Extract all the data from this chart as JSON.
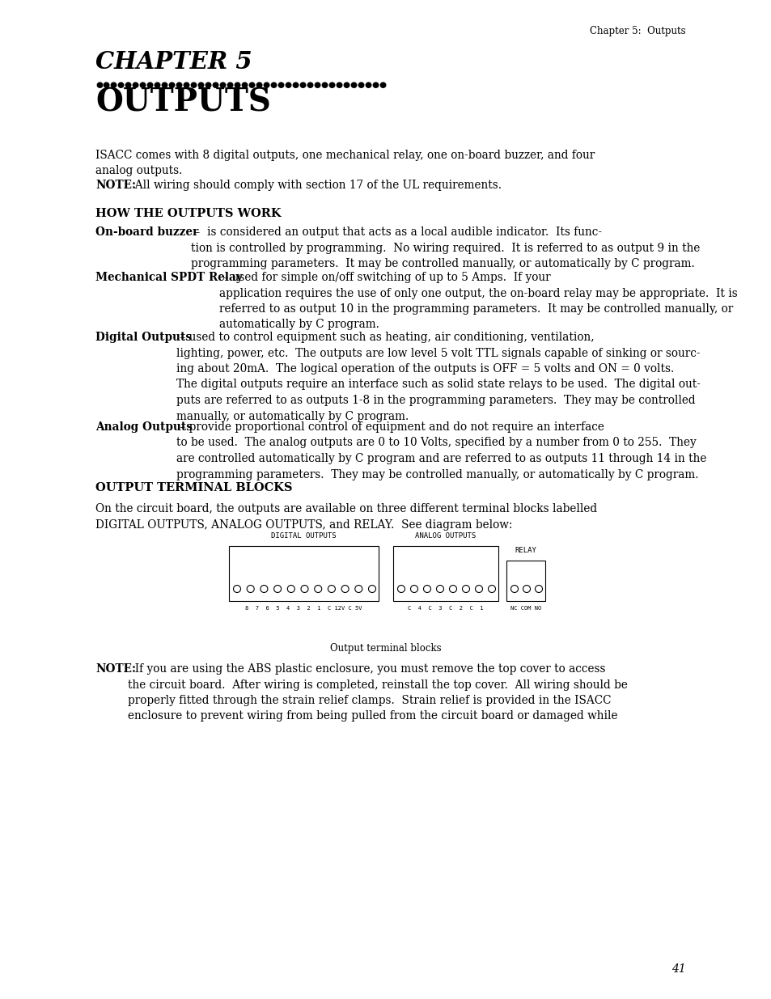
{
  "header_text": "Chapter 5:  Outputs",
  "chapter_label": "CHAPTER 5",
  "title": "OUTPUTS",
  "body_text_1": "ISACC comes with 8 digital outputs, one mechanical relay, one on-board buzzer, and four\nanalog outputs.",
  "note_1_bold": "NOTE:",
  "note_1_rest": "  All wiring should comply with section 17 of the UL requirements.",
  "section1_heading": "HOW THE OUTPUTS WORK",
  "para1_bold": "On-board buzzer",
  "para1_rest": " –  is considered an output that acts as a local audible indicator.  Its func-\ntion is controlled by programming.  No wiring required.  It is referred to as output 9 in the\nprogramming parameters.  It may be controlled manually, or automatically by C program.",
  "para2_bold": "Mechanical SPDT Relay",
  "para2_rest": " – used for simple on/off switching of up to 5 Amps.  If your\napplication requires the use of only one output, the on-board relay may be appropriate.  It is\nreferred to as output 10 in the programming parameters.  It may be controlled manually, or\nautomatically by C program.",
  "para3_bold": "Digital Outputs",
  "para3_rest": " – used to control equipment such as heating, air conditioning, ventilation,\nlighting, power, etc.  The outputs are low level 5 volt TTL signals capable of sinking or sourc-\ning about 20mA.  The logical operation of the outputs is OFF = 5 volts and ON = 0 volts.\nThe digital outputs require an interface such as solid state relays to be used.  The digital out-\nputs are referred to as outputs 1-8 in the programming parameters.  They may be controlled\nmanually, or automatically by C program.",
  "para4_bold": "Analog Outputs",
  "para4_rest": " – provide proportional control of equipment and do not require an interface\nto be used.  The analog outputs are 0 to 10 Volts, specified by a number from 0 to 255.  They\nare controlled automatically by C program and are referred to as outputs 11 through 14 in the\nprogramming parameters.  They may be controlled manually, or automatically by C program.",
  "section2_heading": "OUTPUT TERMINAL BLOCKS",
  "para5": "On the circuit board, the outputs are available on three different terminal blocks labelled\nDIGITAL OUTPUTS, ANALOG OUTPUTS, and RELAY.  See diagram below:",
  "diagram_label_digital": "DIGITAL OUTPUTS",
  "diagram_label_analog": "ANALOG OUTPUTS",
  "diagram_label_relay": "RELAY",
  "diagram_pins_digital": "8  7  6  5  4  3  2  1  C 12V C 5V",
  "diagram_pins_analog": "C  4  C  3  C  2  C  1",
  "diagram_pins_relay": "NC COM NO",
  "diagram_caption": "Output terminal blocks",
  "note_2_bold": "NOTE:",
  "note_2_rest": "  If you are using the ABS plastic enclosure, you must remove the top cover to access\nthe circuit board.  After wiring is completed, reinstall the top cover.  All wiring should be\nproperly fitted through the strain relief clamps.  Strain relief is provided in the ISACC\nenclosure to prevent wiring from being pulled from the circuit board or damaged while",
  "page_number": "41",
  "bg_color": "#ffffff",
  "text_color": "#000000"
}
